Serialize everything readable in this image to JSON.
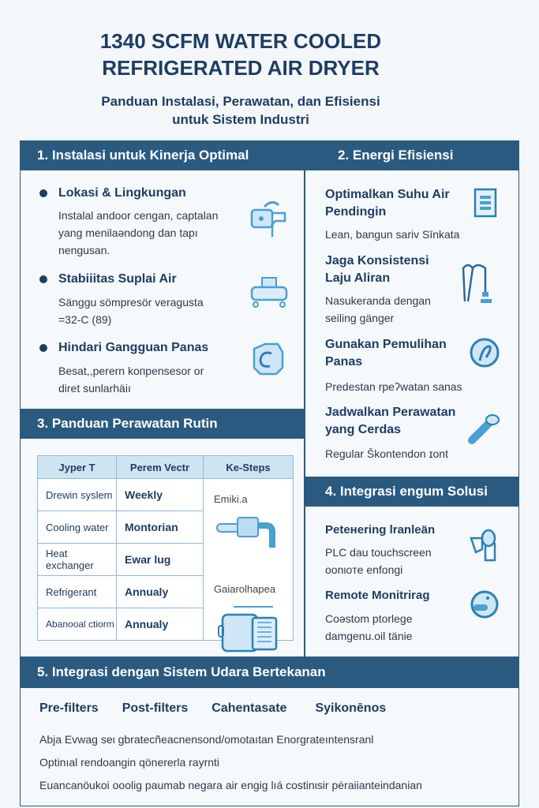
{
  "title": {
    "line1": "1340 SCFM WATER COOLED",
    "line2": "REFRIGERATED AIR DRYER"
  },
  "subtitle": {
    "line1": "Panduan Instalasi, Perawatan, dan Efisiensi",
    "line2": "untuk Sistem Industri"
  },
  "colors": {
    "header": "#2b5a80",
    "accent": "#4a9fd4"
  },
  "s1": {
    "title": "1. Instalasi untuk Kinerja Optimal",
    "items": [
      {
        "h": "Lokasi & Lingkungan",
        "d1": "Instalal andoor cengan, captalan",
        "d2": "yang menilaəndong dan tapı",
        "d3": "nengusan.",
        "icon": "location-pipe-icon"
      },
      {
        "h": "Stabiiitas Suplai Air",
        "d1": "Sänggu sömpresör veragusta",
        "d2": "=32-C (89)",
        "icon": "compressor-icon"
      },
      {
        "h": "Hindari Gangguan Panas",
        "d1": "Besat,,perern koпpensesor or",
        "d2": "diret sunlarhäiı",
        "icon": "heat-icon"
      }
    ]
  },
  "s2": {
    "title": "2. Energi Efisiensi",
    "items": [
      {
        "h1": "Optimalkan Suhu Air",
        "h2": "Pendingin",
        "d1": "Lean, bangun sariv Sīnkata",
        "icon": "document-icon"
      },
      {
        "h1": "Jaga Konsistensi",
        "h2": "Laju Aliran",
        "d1": "Nasukeranda dengan",
        "d2": "seiling gänger",
        "icon": "flow-hose-icon"
      },
      {
        "h1": "Gunakan Pemulihan",
        "h2": "Panas",
        "d1": "Predestan rpeʔwatan sanas",
        "icon": "heat-recovery-icon"
      },
      {
        "h1": "Jadwalkan Perawatan",
        "h2": "yang Cerdas",
        "d1": "Regular Škontendon ɪont",
        "icon": "wrench-icon"
      }
    ]
  },
  "s3": {
    "title": "3. Panduan Perawatan Rutin",
    "headers": [
      "Jyper T",
      "Perem Vectr",
      "Ke-Steps"
    ],
    "rows": [
      [
        "Drewin syslem",
        "Weekly"
      ],
      [
        "Cooling water",
        "Montorian"
      ],
      [
        "Heat exchanger",
        "Ewar lug"
      ],
      [
        "Refrigerant",
        "Annualy"
      ],
      [
        "Abanooal ctiorm",
        "Annualy"
      ]
    ],
    "steps": [
      "Emiki.a",
      "Gaiarolhapea"
    ]
  },
  "s4": {
    "title": "4. Integrasi engum Solusi",
    "items": [
      {
        "h": "Peteнering lranleän",
        "d1": "PLC dau touchscreen",
        "d2": "oonιoтe enfongi",
        "icon": "touch-icon"
      },
      {
        "h": "Remote Monitrirag",
        "d1": "Coəstom ptorlege",
        "d2": "damgenu.oil tänie",
        "icon": "monitor-icon"
      }
    ]
  },
  "s5": {
    "title": "5. Integrasi dengan Sistem Udara Bertekanan",
    "tags": [
      "Pre-filters",
      "Post-filters",
      "Cahentasate",
      "Syikonēnos"
    ],
    "lines": [
      "Abja Evwag seι gbratecñeacnensond/omotaıtan Enorgrateıntensranl",
      "Optinıal rendoangin qönererla rayrnti",
      "Euancanöukoi ooolig paumab negara air engig lıá costinιsir pėraiianteindanian"
    ]
  }
}
